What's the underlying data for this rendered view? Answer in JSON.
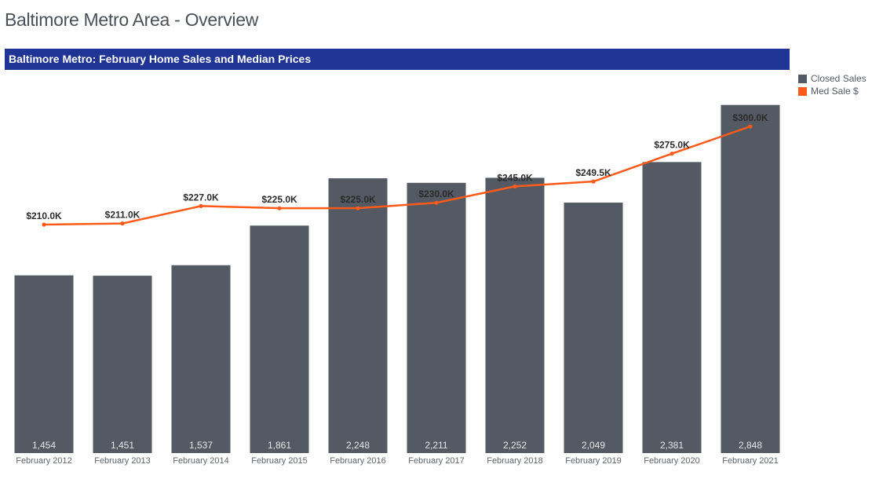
{
  "page": {
    "title": "Baltimore Metro Area - Overview"
  },
  "colors": {
    "header_bg": "#1f3494",
    "bar": "#535a64",
    "line": "#ff5a1a"
  },
  "chart_data": {
    "type": "bar",
    "title": "Baltimore Metro: February Home Sales and Median Prices",
    "categories": [
      "February 2012",
      "February 2013",
      "February 2014",
      "February 2015",
      "February 2016",
      "February 2017",
      "February 2018",
      "February 2019",
      "February 2020",
      "February 2021"
    ],
    "series": [
      {
        "name": "Closed Sales",
        "type": "bar",
        "values": [
          1454,
          1451,
          1537,
          1861,
          2248,
          2211,
          2252,
          2049,
          2381,
          2848
        ],
        "labels": [
          "1,454",
          "1,451",
          "1,537",
          "1,861",
          "2,248",
          "2,211",
          "2,252",
          "2,049",
          "2,381",
          "2,848"
        ]
      },
      {
        "name": "Med Sale $",
        "type": "line",
        "values": [
          210000,
          211000,
          227000,
          225000,
          225000,
          230000,
          245000,
          249500,
          275000,
          300000
        ],
        "labels": [
          "$210.0K",
          "$211.0K",
          "$227.0K",
          "$225.0K",
          "$225.0K",
          "$230.0K",
          "$245.0K",
          "$249.5K",
          "$275.0K",
          "$300.0K"
        ]
      }
    ],
    "legend": [
      "Closed Sales",
      "Med Sale $"
    ],
    "legend_position": "top-right",
    "y_bar_range": [
      0,
      3000
    ],
    "y_line_range": [
      0,
      320000
    ],
    "grid": false,
    "xlabel": "",
    "ylabel": ""
  }
}
